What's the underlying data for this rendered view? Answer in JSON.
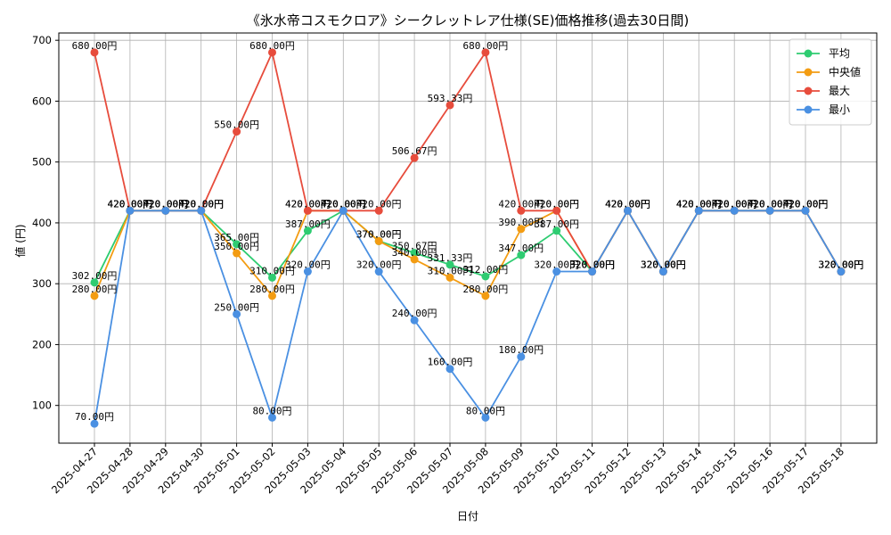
{
  "chart_data": {
    "type": "line",
    "title": "《氷水帝コスモクロア》シークレットレア仕様(SE)価格推移(過去30日間)",
    "xlabel": "日付",
    "ylabel": "値 (円)",
    "ylim": [
      38,
      712
    ],
    "yticks": [
      100,
      200,
      300,
      400,
      500,
      600,
      700
    ],
    "grid": true,
    "legend_position": "top-right",
    "label_suffix": "円",
    "categories": [
      "2025-04-27",
      "2025-04-28",
      "2025-04-29",
      "2025-04-30",
      "2025-05-01",
      "2025-05-02",
      "2025-05-03",
      "2025-05-04",
      "2025-05-05",
      "2025-05-06",
      "2025-05-07",
      "2025-05-08",
      "2025-05-09",
      "2025-05-10",
      "2025-05-11",
      "2025-05-12",
      "2025-05-13",
      "2025-05-14",
      "2025-05-15",
      "2025-05-16",
      "2025-05-17",
      "2025-05-18"
    ],
    "series": [
      {
        "name": "平均",
        "color": "#2ecc71",
        "values": [
          302,
          420,
          420,
          420,
          365,
          310,
          387,
          420,
          370,
          350.67,
          331.33,
          312,
          347,
          387,
          320,
          420,
          320,
          420,
          420,
          420,
          420,
          320
        ]
      },
      {
        "name": "中央値",
        "color": "#f39c12",
        "values": [
          280,
          420,
          420,
          420,
          350,
          280,
          420,
          420,
          370,
          340,
          310,
          280,
          390,
          420,
          320,
          420,
          320,
          420,
          420,
          420,
          420,
          320
        ]
      },
      {
        "name": "最大",
        "color": "#e74c3c",
        "values": [
          680,
          420,
          420,
          420,
          550,
          680,
          420,
          420,
          420,
          506.67,
          593.33,
          680,
          420,
          420,
          320,
          420,
          320,
          420,
          420,
          420,
          420,
          320
        ]
      },
      {
        "name": "最小",
        "color": "#4a90e2",
        "values": [
          70,
          420,
          420,
          420,
          250,
          80,
          320,
          420,
          320,
          240,
          160,
          80,
          180,
          320,
          320,
          420,
          320,
          420,
          420,
          420,
          420,
          320
        ]
      }
    ]
  }
}
